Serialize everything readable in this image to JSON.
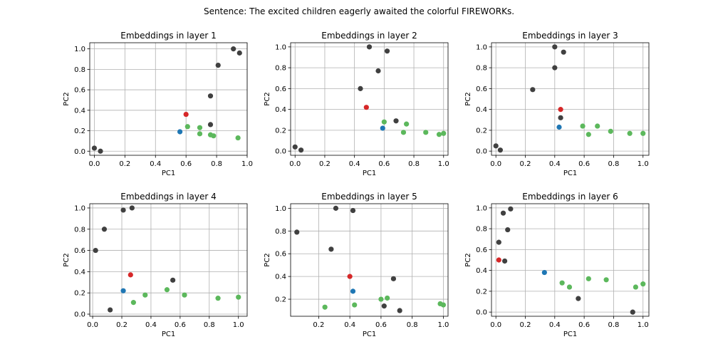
{
  "figure": {
    "suptitle": "Sentence: The excited children eagerly awaited the colorful FIREWORKs."
  },
  "colors": {
    "black": "#404040",
    "red": "#d62728",
    "blue": "#1f77b4",
    "green": "#5cb85c"
  },
  "chart_data": [
    {
      "type": "scatter",
      "title": "Embeddings in layer 1",
      "xlabel": "PC1",
      "ylabel": "PC2",
      "xlim": [
        -0.03,
        1.0
      ],
      "ylim": [
        -0.04,
        1.06
      ],
      "xticks": [
        0.0,
        0.2,
        0.4,
        0.6,
        0.8,
        1.0
      ],
      "xtick_labels": [
        "0.0",
        "0.2",
        "0.4",
        "0.6",
        "0.8",
        "1.0"
      ],
      "yticks": [
        0.0,
        0.2,
        0.4,
        0.6,
        0.8,
        1.0
      ],
      "ytick_labels": [
        "0.0",
        "0.2",
        "0.4",
        "0.6",
        "0.8",
        "1.0"
      ],
      "grid": true,
      "points": [
        {
          "x": 0.0,
          "y": 0.03,
          "c": "black"
        },
        {
          "x": 0.04,
          "y": 0.0,
          "c": "black"
        },
        {
          "x": 0.91,
          "y": 1.0,
          "c": "black"
        },
        {
          "x": 0.95,
          "y": 0.96,
          "c": "black"
        },
        {
          "x": 0.81,
          "y": 0.84,
          "c": "black"
        },
        {
          "x": 0.76,
          "y": 0.54,
          "c": "black"
        },
        {
          "x": 0.76,
          "y": 0.26,
          "c": "black"
        },
        {
          "x": 0.6,
          "y": 0.36,
          "c": "red"
        },
        {
          "x": 0.56,
          "y": 0.19,
          "c": "blue"
        },
        {
          "x": 0.61,
          "y": 0.24,
          "c": "green"
        },
        {
          "x": 0.69,
          "y": 0.23,
          "c": "green"
        },
        {
          "x": 0.69,
          "y": 0.17,
          "c": "green"
        },
        {
          "x": 0.76,
          "y": 0.16,
          "c": "green"
        },
        {
          "x": 0.78,
          "y": 0.15,
          "c": "green"
        },
        {
          "x": 0.94,
          "y": 0.13,
          "c": "green"
        }
      ]
    },
    {
      "type": "scatter",
      "title": "Embeddings in layer 2",
      "xlabel": "PC1",
      "ylabel": "PC2",
      "xlim": [
        -0.03,
        1.03
      ],
      "ylim": [
        -0.04,
        1.04
      ],
      "xticks": [
        0.0,
        0.2,
        0.4,
        0.6,
        0.8,
        1.0
      ],
      "xtick_labels": [
        "0.0",
        "0.2",
        "0.4",
        "0.6",
        "0.8",
        "1.0"
      ],
      "yticks": [
        0.0,
        0.2,
        0.4,
        0.6,
        0.8,
        1.0
      ],
      "ytick_labels": [
        "0.0",
        "0.2",
        "0.4",
        "0.6",
        "0.8",
        "1.0"
      ],
      "grid": true,
      "points": [
        {
          "x": 0.0,
          "y": 0.04,
          "c": "black"
        },
        {
          "x": 0.04,
          "y": 0.01,
          "c": "black"
        },
        {
          "x": 0.5,
          "y": 1.0,
          "c": "black"
        },
        {
          "x": 0.62,
          "y": 0.96,
          "c": "black"
        },
        {
          "x": 0.56,
          "y": 0.77,
          "c": "black"
        },
        {
          "x": 0.44,
          "y": 0.6,
          "c": "black"
        },
        {
          "x": 0.68,
          "y": 0.29,
          "c": "black"
        },
        {
          "x": 0.48,
          "y": 0.42,
          "c": "red"
        },
        {
          "x": 0.59,
          "y": 0.22,
          "c": "blue"
        },
        {
          "x": 0.6,
          "y": 0.28,
          "c": "green"
        },
        {
          "x": 0.75,
          "y": 0.26,
          "c": "green"
        },
        {
          "x": 0.73,
          "y": 0.18,
          "c": "green"
        },
        {
          "x": 0.88,
          "y": 0.18,
          "c": "green"
        },
        {
          "x": 0.97,
          "y": 0.16,
          "c": "green"
        },
        {
          "x": 1.0,
          "y": 0.17,
          "c": "green"
        }
      ]
    },
    {
      "type": "scatter",
      "title": "Embeddings in layer 3",
      "xlabel": "PC1",
      "ylabel": "PC2",
      "xlim": [
        -0.03,
        1.04
      ],
      "ylim": [
        -0.04,
        1.04
      ],
      "xticks": [
        0.0,
        0.2,
        0.4,
        0.6,
        0.8,
        1.0
      ],
      "xtick_labels": [
        "0.0",
        "0.2",
        "0.4",
        "0.6",
        "0.8",
        "1.0"
      ],
      "yticks": [
        0.0,
        0.2,
        0.4,
        0.6,
        0.8,
        1.0
      ],
      "ytick_labels": [
        "0.0",
        "0.2",
        "0.4",
        "0.6",
        "0.8",
        "1.0"
      ],
      "grid": true,
      "points": [
        {
          "x": 0.0,
          "y": 0.05,
          "c": "black"
        },
        {
          "x": 0.03,
          "y": 0.01,
          "c": "black"
        },
        {
          "x": 0.4,
          "y": 1.0,
          "c": "black"
        },
        {
          "x": 0.46,
          "y": 0.95,
          "c": "black"
        },
        {
          "x": 0.4,
          "y": 0.8,
          "c": "black"
        },
        {
          "x": 0.25,
          "y": 0.59,
          "c": "black"
        },
        {
          "x": 0.44,
          "y": 0.32,
          "c": "black"
        },
        {
          "x": 0.44,
          "y": 0.4,
          "c": "red"
        },
        {
          "x": 0.43,
          "y": 0.23,
          "c": "blue"
        },
        {
          "x": 0.59,
          "y": 0.24,
          "c": "green"
        },
        {
          "x": 0.69,
          "y": 0.24,
          "c": "green"
        },
        {
          "x": 0.63,
          "y": 0.16,
          "c": "green"
        },
        {
          "x": 0.78,
          "y": 0.19,
          "c": "green"
        },
        {
          "x": 0.91,
          "y": 0.17,
          "c": "green"
        },
        {
          "x": 1.0,
          "y": 0.17,
          "c": "green"
        }
      ]
    },
    {
      "type": "scatter",
      "title": "Embeddings in layer 4",
      "xlabel": "PC1",
      "ylabel": "PC2",
      "xlim": [
        -0.02,
        1.06
      ],
      "ylim": [
        -0.02,
        1.04
      ],
      "xticks": [
        0.0,
        0.2,
        0.4,
        0.6,
        0.8,
        1.0
      ],
      "xtick_labels": [
        "0.0",
        "0.2",
        "0.4",
        "0.6",
        "0.8",
        "1.0"
      ],
      "yticks": [
        0.0,
        0.2,
        0.4,
        0.6,
        0.8,
        1.0
      ],
      "ytick_labels": [
        "0.0",
        "0.2",
        "0.4",
        "0.6",
        "0.8",
        "1.0"
      ],
      "grid": true,
      "points": [
        {
          "x": 0.02,
          "y": 0.6,
          "c": "black"
        },
        {
          "x": 0.08,
          "y": 0.8,
          "c": "black"
        },
        {
          "x": 0.21,
          "y": 0.98,
          "c": "black"
        },
        {
          "x": 0.27,
          "y": 1.0,
          "c": "black"
        },
        {
          "x": 0.55,
          "y": 0.32,
          "c": "black"
        },
        {
          "x": 0.12,
          "y": 0.04,
          "c": "black"
        },
        {
          "x": 0.26,
          "y": 0.37,
          "c": "red"
        },
        {
          "x": 0.21,
          "y": 0.22,
          "c": "blue"
        },
        {
          "x": 0.28,
          "y": 0.11,
          "c": "green"
        },
        {
          "x": 0.36,
          "y": 0.18,
          "c": "green"
        },
        {
          "x": 0.51,
          "y": 0.23,
          "c": "green"
        },
        {
          "x": 0.63,
          "y": 0.18,
          "c": "green"
        },
        {
          "x": 0.86,
          "y": 0.15,
          "c": "green"
        },
        {
          "x": 1.0,
          "y": 0.16,
          "c": "green"
        }
      ]
    },
    {
      "type": "scatter",
      "title": "Embeddings in layer 5",
      "xlabel": "PC1",
      "ylabel": "PC2",
      "xlim": [
        0.02,
        1.03
      ],
      "ylim": [
        0.05,
        1.04
      ],
      "xticks": [
        0.2,
        0.4,
        0.6,
        0.8,
        1.0
      ],
      "xtick_labels": [
        "0.2",
        "0.4",
        "0.6",
        "0.8",
        "1.0"
      ],
      "yticks": [
        0.2,
        0.4,
        0.6,
        0.8,
        1.0
      ],
      "ytick_labels": [
        "0.2",
        "0.4",
        "0.6",
        "0.8",
        "1.0"
      ],
      "grid": true,
      "points": [
        {
          "x": 0.06,
          "y": 0.79,
          "c": "black"
        },
        {
          "x": 0.31,
          "y": 1.0,
          "c": "black"
        },
        {
          "x": 0.42,
          "y": 0.98,
          "c": "black"
        },
        {
          "x": 0.28,
          "y": 0.64,
          "c": "black"
        },
        {
          "x": 0.68,
          "y": 0.38,
          "c": "black"
        },
        {
          "x": 0.62,
          "y": 0.14,
          "c": "black"
        },
        {
          "x": 0.72,
          "y": 0.1,
          "c": "black"
        },
        {
          "x": 0.4,
          "y": 0.4,
          "c": "red"
        },
        {
          "x": 0.42,
          "y": 0.27,
          "c": "blue"
        },
        {
          "x": 0.24,
          "y": 0.13,
          "c": "green"
        },
        {
          "x": 0.43,
          "y": 0.15,
          "c": "green"
        },
        {
          "x": 0.6,
          "y": 0.2,
          "c": "green"
        },
        {
          "x": 0.64,
          "y": 0.21,
          "c": "green"
        },
        {
          "x": 0.98,
          "y": 0.16,
          "c": "green"
        },
        {
          "x": 1.0,
          "y": 0.15,
          "c": "green"
        }
      ]
    },
    {
      "type": "scatter",
      "title": "Embeddings in layer 6",
      "xlabel": "PC1",
      "ylabel": "PC2",
      "xlim": [
        -0.03,
        1.04
      ],
      "ylim": [
        -0.04,
        1.04
      ],
      "xticks": [
        0.0,
        0.2,
        0.4,
        0.6,
        0.8,
        1.0
      ],
      "xtick_labels": [
        "0.0",
        "0.2",
        "0.4",
        "0.6",
        "0.8",
        "1.0"
      ],
      "yticks": [
        0.0,
        0.2,
        0.4,
        0.6,
        0.8,
        1.0
      ],
      "ytick_labels": [
        "0.0",
        "0.2",
        "0.4",
        "0.6",
        "0.8",
        "1.0"
      ],
      "grid": true,
      "points": [
        {
          "x": 0.1,
          "y": 0.99,
          "c": "black"
        },
        {
          "x": 0.05,
          "y": 0.95,
          "c": "black"
        },
        {
          "x": 0.08,
          "y": 0.79,
          "c": "black"
        },
        {
          "x": 0.02,
          "y": 0.67,
          "c": "black"
        },
        {
          "x": 0.06,
          "y": 0.49,
          "c": "black"
        },
        {
          "x": 0.56,
          "y": 0.13,
          "c": "black"
        },
        {
          "x": 0.93,
          "y": 0.0,
          "c": "black"
        },
        {
          "x": 0.02,
          "y": 0.5,
          "c": "red"
        },
        {
          "x": 0.33,
          "y": 0.38,
          "c": "blue"
        },
        {
          "x": 0.45,
          "y": 0.28,
          "c": "green"
        },
        {
          "x": 0.5,
          "y": 0.24,
          "c": "green"
        },
        {
          "x": 0.63,
          "y": 0.32,
          "c": "green"
        },
        {
          "x": 0.75,
          "y": 0.31,
          "c": "green"
        },
        {
          "x": 0.95,
          "y": 0.24,
          "c": "green"
        },
        {
          "x": 1.0,
          "y": 0.27,
          "c": "green"
        }
      ]
    }
  ]
}
